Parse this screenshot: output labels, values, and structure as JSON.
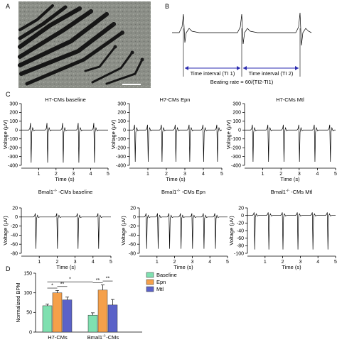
{
  "panels": {
    "a": "A",
    "b": "B",
    "c": "C",
    "d": "D"
  },
  "panel_b": {
    "interval1": "Time interval (TI 1)",
    "interval2": "Time interval (TI 2)",
    "formula": "Beating rate = 60/(TI2-TI1)",
    "formula_color": "#2b4bb0"
  },
  "chart_data": [
    {
      "type": "line",
      "title": "H7-CMs baseline",
      "xlabel": "Time (s)",
      "ylabel": "Voltage (μV)",
      "xlim": [
        0,
        5
      ],
      "ylim": [
        -400,
        300
      ],
      "xticks": [
        1,
        2,
        3,
        4,
        5
      ],
      "yticks": [
        300,
        200,
        100,
        0,
        -100,
        -200,
        -300,
        -400
      ],
      "beat_times": [
        0.55,
        1.5,
        2.4,
        3.3,
        4.2
      ],
      "spike_max": 80,
      "spike_min": -370
    },
    {
      "type": "line",
      "title": "H7-CMs Epn",
      "xlabel": "Time (s)",
      "ylabel": "Voltage (μV)",
      "xlim": [
        0,
        5
      ],
      "ylim": [
        -400,
        300
      ],
      "xticks": [
        1,
        2,
        3,
        4,
        5
      ],
      "yticks": [
        300,
        200,
        100,
        0,
        -100,
        -200,
        -300,
        -400
      ],
      "beat_times": [
        0.3,
        1.0,
        1.75,
        2.5,
        3.25,
        4.0,
        4.75
      ],
      "spike_max": 60,
      "spike_min": -360
    },
    {
      "type": "line",
      "title": "H7-CMs Mtl",
      "xlabel": "Time (s)",
      "ylabel": "Voltage (μV)",
      "xlim": [
        0,
        5
      ],
      "ylim": [
        -400,
        300
      ],
      "xticks": [
        1,
        2,
        3,
        4,
        5
      ],
      "yticks": [
        300,
        200,
        100,
        0,
        -100,
        -200,
        -300,
        -400
      ],
      "beat_times": [
        0.45,
        1.3,
        2.15,
        3.0,
        3.85,
        4.7
      ],
      "spike_max": 60,
      "spike_min": -360
    },
    {
      "type": "line",
      "title_prefix": "Bmal1",
      "title_sup": "-/-",
      "title_suffix": " -CMs baseline",
      "xlabel": "Time (s)",
      "ylabel": "Voltage (μV)",
      "xlim": [
        0,
        5
      ],
      "ylim": [
        -80,
        20
      ],
      "xticks": [
        1,
        2,
        3,
        4,
        5
      ],
      "yticks": [
        20,
        0,
        -20,
        -40,
        -60,
        -80
      ],
      "beat_times": [
        0.8,
        2.0,
        3.15,
        4.3
      ],
      "spike_max": 8,
      "spike_min": -70
    },
    {
      "type": "line",
      "title_prefix": "Bmal1",
      "title_sup": "-/-",
      "title_suffix": " -CMs Epn",
      "xlabel": "Time (s)",
      "ylabel": "Voltage (μV)",
      "xlim": [
        0,
        5
      ],
      "ylim": [
        -80,
        20
      ],
      "xticks": [
        1,
        2,
        3,
        4,
        5
      ],
      "yticks": [
        20,
        0,
        -20,
        -40,
        -60,
        -80
      ],
      "beat_times": [
        0.4,
        1.05,
        1.7,
        2.35,
        3.0,
        3.65,
        4.3
      ],
      "spike_max": 8,
      "spike_min": -70
    },
    {
      "type": "line",
      "title_prefix": "Bmal1",
      "title_sup": "-/-",
      "title_suffix": " -CMs Mtl",
      "xlabel": "Time (s)",
      "ylabel": "Voltage (μV)",
      "xlim": [
        0,
        5
      ],
      "ylim": [
        -100,
        20
      ],
      "xticks": [
        1,
        2,
        3,
        4,
        5
      ],
      "yticks": [
        20,
        0,
        -20,
        -40,
        -60,
        -80,
        -100
      ],
      "beat_times": [
        0.4,
        1.2,
        2.0,
        2.85,
        3.7,
        4.55
      ],
      "spike_max": 8,
      "spike_min": -90
    },
    {
      "type": "bar",
      "ylabel": "Normalized BPM",
      "ylim": [
        0,
        150
      ],
      "yticks": [
        0,
        50,
        100,
        150
      ],
      "categories": [
        "H7-CMs",
        "Bmal1-/--CMs"
      ],
      "category_labels": [
        {
          "prefix": "H7-CMs",
          "sup": "",
          "suffix": ""
        },
        {
          "prefix": "Bmal1",
          "sup": "-/-",
          "suffix": "-CMs"
        }
      ],
      "series": [
        {
          "name": "Baseline",
          "values": [
            67,
            43
          ],
          "errors": [
            4,
            6
          ],
          "color": "#7fe0b0"
        },
        {
          "name": "Epn",
          "values": [
            100,
            107
          ],
          "errors": [
            6,
            13
          ],
          "color": "#f5a04a"
        },
        {
          "name": "Mtl",
          "values": [
            82,
            69
          ],
          "errors": [
            7,
            14
          ],
          "color": "#5b62c8"
        }
      ],
      "significance": [
        {
          "text": "*",
          "group": 0,
          "from": 0,
          "to": 1
        },
        {
          "text": "**",
          "group": 0,
          "from": 1,
          "to": 2
        },
        {
          "text": "**",
          "group": 1,
          "from": 0,
          "to": 1
        },
        {
          "text": "**",
          "group": 1,
          "from": 1,
          "to": 2
        },
        {
          "text": "*",
          "span": "across"
        }
      ],
      "legend_placement": "top-right"
    }
  ]
}
